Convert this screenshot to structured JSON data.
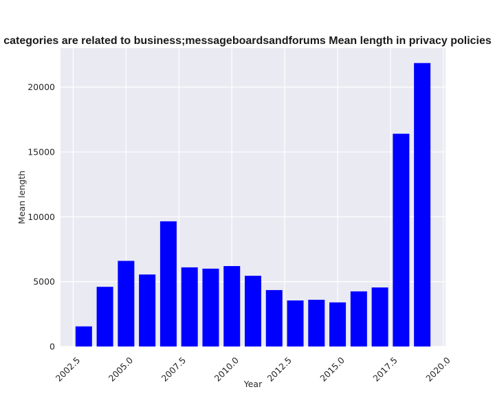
{
  "chart_data": {
    "type": "bar",
    "title": "categories are related to business;messageboardsandforums Mean length in privacy policies",
    "xlabel": "Year",
    "ylabel": "Mean length",
    "x": [
      2003,
      2004,
      2005,
      2006,
      2007,
      2008,
      2009,
      2010,
      2011,
      2012,
      2013,
      2014,
      2015,
      2016,
      2017,
      2018,
      2019
    ],
    "values": [
      1550,
      4600,
      6600,
      5550,
      9650,
      6100,
      6000,
      6200,
      5450,
      4350,
      3550,
      3600,
      3400,
      4250,
      4550,
      16400,
      21850
    ],
    "xlim": [
      2001.9,
      2020.1
    ],
    "ylim": [
      0,
      23000
    ],
    "xticks": [
      "2002.5",
      "2005.0",
      "2007.5",
      "2010.0",
      "2012.5",
      "2015.0",
      "2017.5",
      "2020.0"
    ],
    "xtick_values": [
      2002.5,
      2005.0,
      2007.5,
      2010.0,
      2012.5,
      2015.0,
      2017.5,
      2020.0
    ],
    "yticks": [
      "0",
      "5000",
      "10000",
      "15000",
      "20000"
    ],
    "ytick_values": [
      0,
      5000,
      10000,
      15000,
      20000
    ],
    "grid": true,
    "colors": {
      "bar": "#0000ff",
      "background": "#eaeaf2",
      "grid": "#ffffff"
    }
  }
}
